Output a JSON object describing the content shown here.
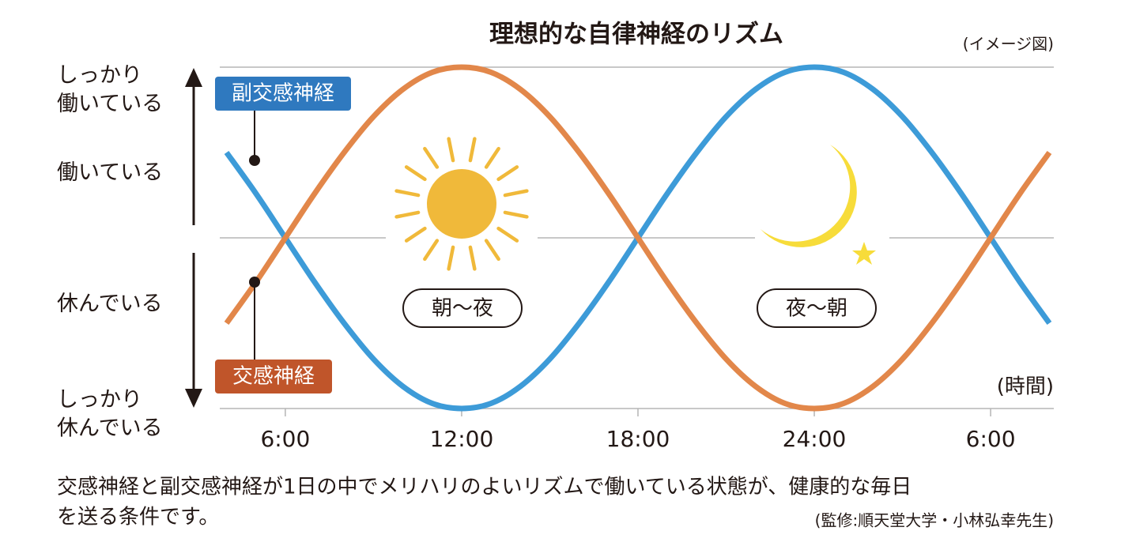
{
  "chart_data": {
    "type": "line",
    "title": "理想的な自律神経のリズム",
    "note": "(イメージ図)",
    "x_label": "(時間)",
    "x": [
      4,
      5,
      6,
      7,
      8,
      9,
      10,
      11,
      12,
      13,
      14,
      15,
      16,
      17,
      18,
      19,
      20,
      21,
      22,
      23,
      24,
      25,
      26,
      27,
      28,
      29,
      30,
      31,
      32
    ],
    "series": [
      {
        "name": "副交感神経",
        "color": "#3d9bd8",
        "label_color": "#2f79bf",
        "values": [
          0.5,
          0.26,
          0,
          -0.26,
          -0.5,
          -0.71,
          -0.87,
          -0.97,
          -1,
          -0.97,
          -0.87,
          -0.71,
          -0.5,
          -0.26,
          0,
          0.26,
          0.5,
          0.71,
          0.87,
          0.97,
          1,
          0.97,
          0.87,
          0.71,
          0.5,
          0.26,
          0,
          -0.26,
          -0.5
        ]
      },
      {
        "name": "交感神経",
        "color": "#e2874a",
        "label_color": "#c0552a",
        "values": [
          -0.5,
          -0.26,
          0,
          0.26,
          0.5,
          0.71,
          0.87,
          0.97,
          1,
          0.97,
          0.87,
          0.71,
          0.5,
          0.26,
          0,
          -0.26,
          -0.5,
          -0.71,
          -0.87,
          -0.97,
          -1,
          -0.97,
          -0.87,
          -0.71,
          -0.5,
          -0.26,
          0,
          0.26,
          0.5
        ]
      }
    ],
    "xlim": [
      3.77,
      32.15
    ],
    "xticks": [
      {
        "value": 6,
        "label": "6:00"
      },
      {
        "value": 12,
        "label": "12:00"
      },
      {
        "value": 18,
        "label": "18:00"
      },
      {
        "value": 24,
        "label": "24:00"
      },
      {
        "value": 30,
        "label": "6:00"
      }
    ],
    "ylim": [
      -1,
      1
    ],
    "yticks": [
      {
        "value": 0.87,
        "label": "しっかり\n働いている"
      },
      {
        "value": 0.38,
        "label": "働いている"
      },
      {
        "value": -0.39,
        "label": "休んでいる"
      },
      {
        "value": -1.03,
        "label": "しっかり\n休んでいる"
      }
    ],
    "grid": true,
    "annotations": [
      "朝〜夜",
      "夜〜朝"
    ],
    "caption": [
      "交感神経と副交感神経が1日の中でメリハリのよいリズムで働いている状態が、健康的な毎日",
      "を送る条件です。"
    ],
    "credit": "(監修:順天堂大学・小林弘幸先生)"
  }
}
